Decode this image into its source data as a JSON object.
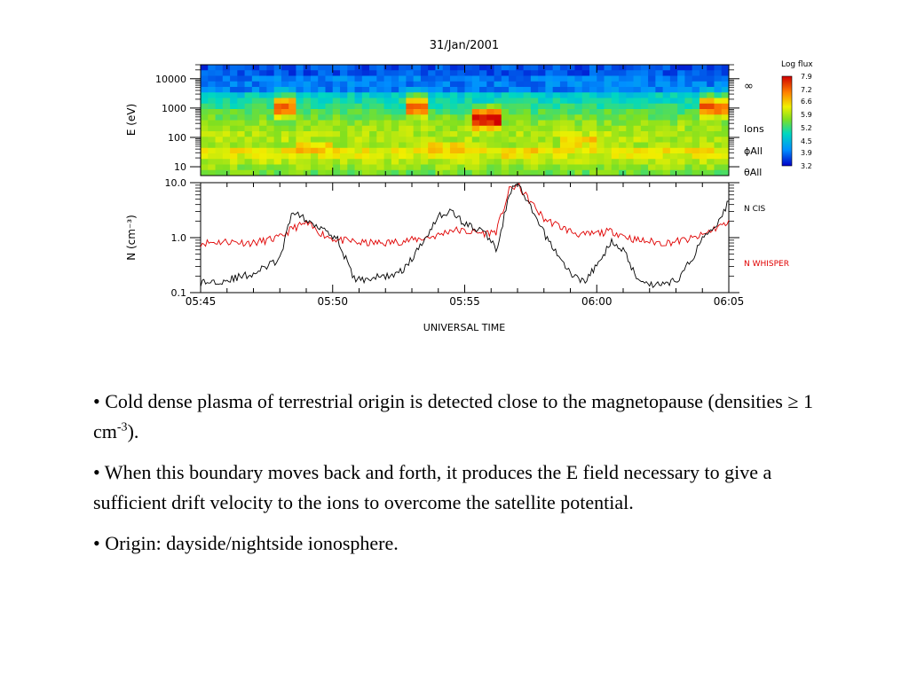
{
  "chart_data": [
    {
      "type": "heatmap",
      "title": "31/Jan/2001",
      "ylabel": "E (eV)",
      "yscale": "log",
      "ylim": [
        5,
        30000
      ],
      "yticks": [
        "10000",
        "1000",
        "100",
        "10"
      ],
      "xlim_minutes": [
        0,
        20
      ],
      "right_labels": [
        "∞",
        "Ions",
        "ϕAll",
        "θAll"
      ],
      "colorbar": {
        "title": "Log flux",
        "ticks": [
          "7.9",
          "7.2",
          "6.6",
          "5.9",
          "5.2",
          "4.5",
          "3.9",
          "3.2"
        ],
        "min": 3.2,
        "max": 7.9
      },
      "hot_regions": [
        {
          "time_start": "05:47:40",
          "time_end": "05:48:30",
          "energy_eV_peak": 1000,
          "level": "high"
        },
        {
          "time_start": "05:48:30",
          "time_end": "05:50:00",
          "energy_eV_peak": 40,
          "level": "medium"
        },
        {
          "time_start": "05:52:45",
          "time_end": "05:53:30",
          "energy_eV_peak": 1000,
          "level": "high"
        },
        {
          "time_start": "05:53:30",
          "time_end": "05:55:00",
          "energy_eV_peak": 40,
          "level": "medium"
        },
        {
          "time_start": "05:55:20",
          "time_end": "05:56:20",
          "energy_eV_peak": 400,
          "level": "very high"
        },
        {
          "time_start": "05:56:20",
          "time_end": "05:57:40",
          "energy_eV_peak": 30,
          "level": "medium"
        },
        {
          "time_start": "05:58:40",
          "time_end": "06:00:00",
          "energy_eV_peak": 80,
          "level": "medium"
        },
        {
          "time_start": "06:04:00",
          "time_end": "06:05:00",
          "energy_eV_peak": 1000,
          "level": "high"
        }
      ]
    },
    {
      "type": "line",
      "ylabel": "N (cm⁻³)",
      "yscale": "log",
      "ylim": [
        0.1,
        10.0
      ],
      "yticks": [
        "10.0",
        "1.0",
        "0.1"
      ],
      "xlabel": "UNIVERSAL TIME",
      "x_ticks": [
        "05:45",
        "05:50",
        "05:55",
        "06:00",
        "06:05"
      ],
      "x_minutes_since_start": [
        0,
        1,
        2,
        3,
        3.5,
        4,
        4.7,
        5.2,
        5.8,
        6,
        7,
        7.5,
        8,
        9,
        9.5,
        10,
        10.8,
        11.2,
        11.7,
        12,
        13,
        14,
        14.5,
        15,
        15.6,
        16,
        16.5,
        17,
        17.5,
        18,
        18.6,
        19,
        19.6,
        20
      ],
      "series": [
        {
          "name": "N CIS",
          "color": "#000000",
          "values": [
            0.15,
            0.17,
            0.22,
            0.4,
            3.2,
            2.0,
            1.5,
            0.9,
            0.18,
            0.17,
            0.2,
            0.22,
            0.4,
            2.5,
            3.0,
            1.8,
            1.2,
            0.6,
            6.5,
            9.5,
            1.2,
            0.22,
            0.16,
            0.3,
            0.9,
            0.6,
            0.2,
            0.14,
            0.15,
            0.16,
            0.4,
            1.0,
            2.0,
            4.5
          ],
          "label_color": "#000000"
        },
        {
          "name": "N WHISPER",
          "color": "#e00000",
          "values": [
            0.8,
            0.85,
            0.8,
            1.0,
            1.5,
            1.8,
            1.1,
            0.9,
            0.85,
            0.8,
            0.8,
            0.85,
            0.9,
            1.1,
            1.4,
            1.3,
            1.2,
            1.3,
            7.5,
            9.0,
            2.2,
            1.3,
            1.1,
            1.2,
            1.3,
            1.1,
            0.9,
            0.85,
            0.8,
            0.85,
            0.95,
            1.1,
            1.6,
            1.8
          ],
          "label_color": "#e00000"
        }
      ]
    }
  ],
  "bullets": {
    "b1_text": "• Cold dense plasma of terrestrial origin is detected close to the magnetopause (densities ≥ 1 cm",
    "b1_sup": "-3",
    "b1_tail": ").",
    "b2": "• When this boundary moves back and forth, it produces the E field necessary to give a sufficient drift velocity to the ions to overcome the satellite potential.",
    "b3": "• Origin: dayside/nightside ionosphere."
  }
}
